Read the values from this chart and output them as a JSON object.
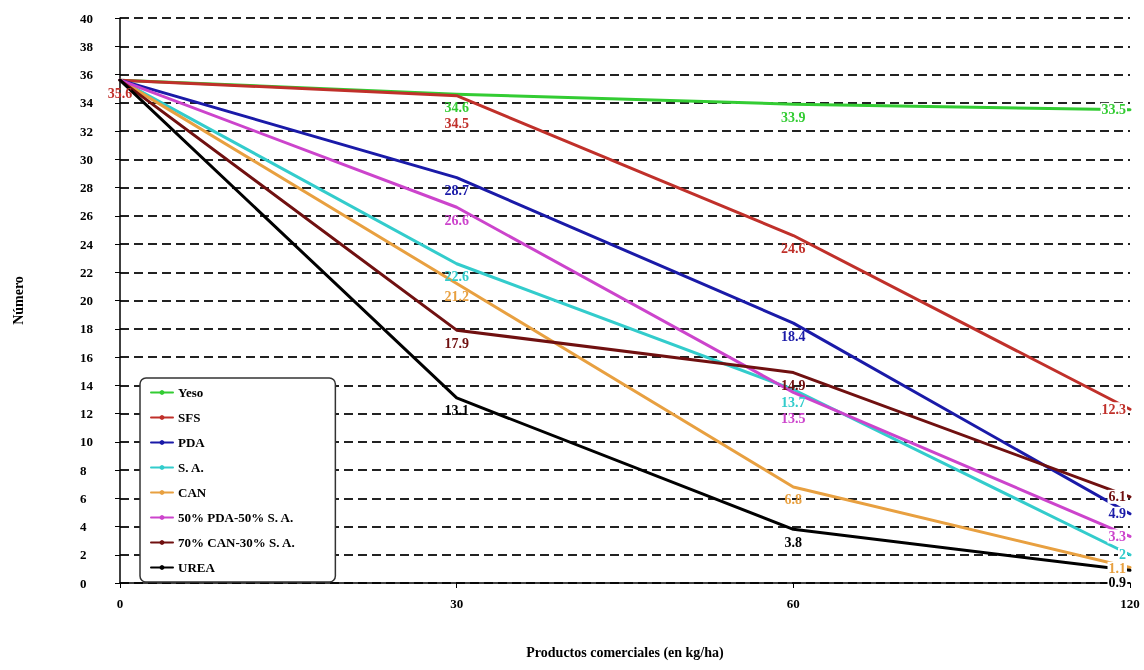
{
  "chart_data": {
    "type": "line",
    "xlabel": "Productos comerciales (en kg/ha)",
    "ylabel": "Número",
    "categories": [
      "0",
      "30",
      "60",
      "120"
    ],
    "ylim": [
      0,
      40
    ],
    "yticks": [
      0,
      2,
      4,
      6,
      8,
      10,
      12,
      14,
      16,
      18,
      20,
      22,
      24,
      26,
      28,
      30,
      32,
      34,
      36,
      38,
      40
    ],
    "grid": "y",
    "legend": "bottom left",
    "marker": "none",
    "series": [
      {
        "name": "Yeso",
        "color": "#33cc33",
        "values": [
          35.6,
          34.6,
          33.9,
          33.5
        ],
        "value_labels": [
          null,
          "34.6",
          "33.9",
          "33.5"
        ]
      },
      {
        "name": "SFS",
        "color": "#c0302a",
        "values": [
          35.6,
          34.5,
          24.6,
          12.3
        ],
        "value_labels": [
          "35.6",
          "34.5",
          "24.6",
          "12.3"
        ]
      },
      {
        "name": "PDA",
        "color": "#1a1aa8",
        "values": [
          35.6,
          28.7,
          18.4,
          4.9
        ],
        "value_labels": [
          null,
          "28.7",
          "18.4",
          "4.9"
        ]
      },
      {
        "name": "S. A.",
        "color": "#33cccc",
        "values": [
          35.6,
          22.6,
          13.7,
          2
        ],
        "value_labels": [
          null,
          "22.6",
          "13.7",
          "2"
        ]
      },
      {
        "name": "CAN",
        "color": "#e8a040",
        "values": [
          35.6,
          21.2,
          6.8,
          1.1
        ],
        "value_labels": [
          null,
          "21.2",
          "6.8",
          "1.1"
        ]
      },
      {
        "name": "50% PDA-50% S. A.",
        "color": "#cc44cc",
        "values": [
          35.6,
          26.6,
          13.5,
          3.3
        ],
        "value_labels": [
          null,
          "26.6",
          "13.5",
          "3.3"
        ]
      },
      {
        "name": "70% CAN-30% S. A.",
        "color": "#701010",
        "values": [
          35.6,
          17.9,
          14.9,
          6.1
        ],
        "value_labels": [
          null,
          "17.9",
          "14.9",
          "6.1"
        ]
      },
      {
        "name": "UREA",
        "color": "#000000",
        "values": [
          35.6,
          13.1,
          3.8,
          0.9
        ],
        "value_labels": [
          null,
          "13.1",
          "3.8",
          "0.9"
        ]
      }
    ]
  }
}
